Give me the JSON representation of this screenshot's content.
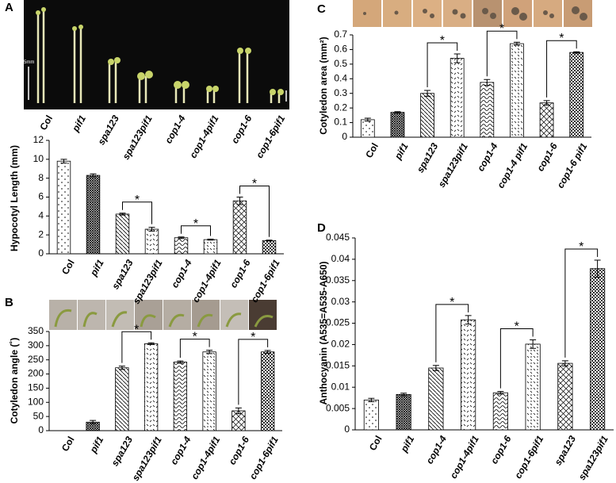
{
  "chart_data": [
    {
      "type": "bar",
      "panel": "A",
      "y_label": "Hypocotyl Length (mm)",
      "image_scale_label": "5mm",
      "categories": [
        "Col",
        "pif1",
        "spa123",
        "spa123pif1",
        "cop1-4",
        "cop1-4pif1",
        "cop1-6",
        "cop1-6pif1"
      ],
      "values": [
        9.8,
        8.3,
        4.2,
        2.6,
        1.7,
        1.5,
        5.6,
        1.4
      ],
      "errors": [
        0.2,
        0.15,
        0.1,
        0.2,
        0.08,
        0.05,
        0.4,
        0.05
      ],
      "ylim": [
        0,
        12
      ],
      "yticks": [
        0,
        2,
        4,
        6,
        8,
        10,
        12
      ],
      "annotations": [
        {
          "label": "*",
          "between": [
            "spa123",
            "spa123pif1"
          ]
        },
        {
          "label": "*",
          "between": [
            "cop1-4",
            "cop1-4pif1"
          ]
        },
        {
          "label": "*",
          "between": [
            "cop1-6",
            "cop1-6pif1"
          ]
        }
      ]
    },
    {
      "type": "bar",
      "panel": "B",
      "y_label": "Cotyledon angle (˚)",
      "categories": [
        "Col",
        "pif1",
        "spa123",
        "spa123pif1",
        "cop1-4",
        "cop1-4pif1",
        "cop1-6",
        "cop1-6pif1"
      ],
      "values": [
        0,
        30,
        222,
        307,
        242,
        278,
        70,
        278
      ],
      "errors": [
        0,
        6,
        6,
        3,
        4,
        6,
        10,
        5
      ],
      "ylim": [
        0,
        350
      ],
      "yticks": [
        0,
        50,
        100,
        150,
        200,
        250,
        300,
        350
      ],
      "annotations": [
        {
          "label": "*",
          "between": [
            "spa123",
            "spa123pif1"
          ]
        },
        {
          "label": "*",
          "between": [
            "cop1-4",
            "cop1-4pif1"
          ]
        },
        {
          "label": "*",
          "between": [
            "cop1-6",
            "cop1-6pif1"
          ]
        }
      ]
    },
    {
      "type": "bar",
      "panel": "C",
      "y_label": "Cotyledon area (mm²)",
      "categories": [
        "Col",
        "pif1",
        "spa123",
        "spa123pif1",
        "cop1-4",
        "cop1-4 pif1",
        "cop1-6",
        "cop1-6 pif1"
      ],
      "values": [
        0.12,
        0.17,
        0.3,
        0.54,
        0.375,
        0.64,
        0.235,
        0.58
      ],
      "errors": [
        0.01,
        0.005,
        0.02,
        0.03,
        0.02,
        0.01,
        0.015,
        0.005
      ],
      "ylim": [
        0,
        0.7
      ],
      "yticks": [
        0,
        0.1,
        0.2,
        0.3,
        0.4,
        0.5,
        0.6,
        0.7
      ],
      "annotations": [
        {
          "label": "*",
          "between": [
            "spa123",
            "spa123pif1"
          ]
        },
        {
          "label": "*",
          "between": [
            "cop1-4",
            "cop1-4 pif1"
          ]
        },
        {
          "label": "*",
          "between": [
            "cop1-6",
            "cop1-6 pif1"
          ]
        }
      ]
    },
    {
      "type": "bar",
      "panel": "D",
      "y_label": "Anthocyanin (A535=A535-A650)",
      "categories": [
        "Col",
        "pif1",
        "cop1-4",
        "cop1-4pif1",
        "cop1-6",
        "cop1-6pif1",
        "spa123",
        "spa123pif1"
      ],
      "values": [
        0.007,
        0.0083,
        0.0145,
        0.0258,
        0.0087,
        0.0201,
        0.0156,
        0.0378
      ],
      "errors": [
        0.0004,
        0.0003,
        0.0006,
        0.001,
        0.0003,
        0.001,
        0.0006,
        0.002
      ],
      "ylim": [
        0,
        0.045
      ],
      "yticks": [
        0,
        0.005,
        0.01,
        0.015,
        0.02,
        0.025,
        0.03,
        0.035,
        0.04,
        0.045
      ],
      "annotations": [
        {
          "label": "*",
          "between": [
            "cop1-4",
            "cop1-4pif1"
          ]
        },
        {
          "label": "*",
          "between": [
            "cop1-6",
            "cop1-6pif1"
          ]
        },
        {
          "label": "*",
          "between": [
            "spa123",
            "spa123pif1"
          ]
        }
      ]
    }
  ]
}
